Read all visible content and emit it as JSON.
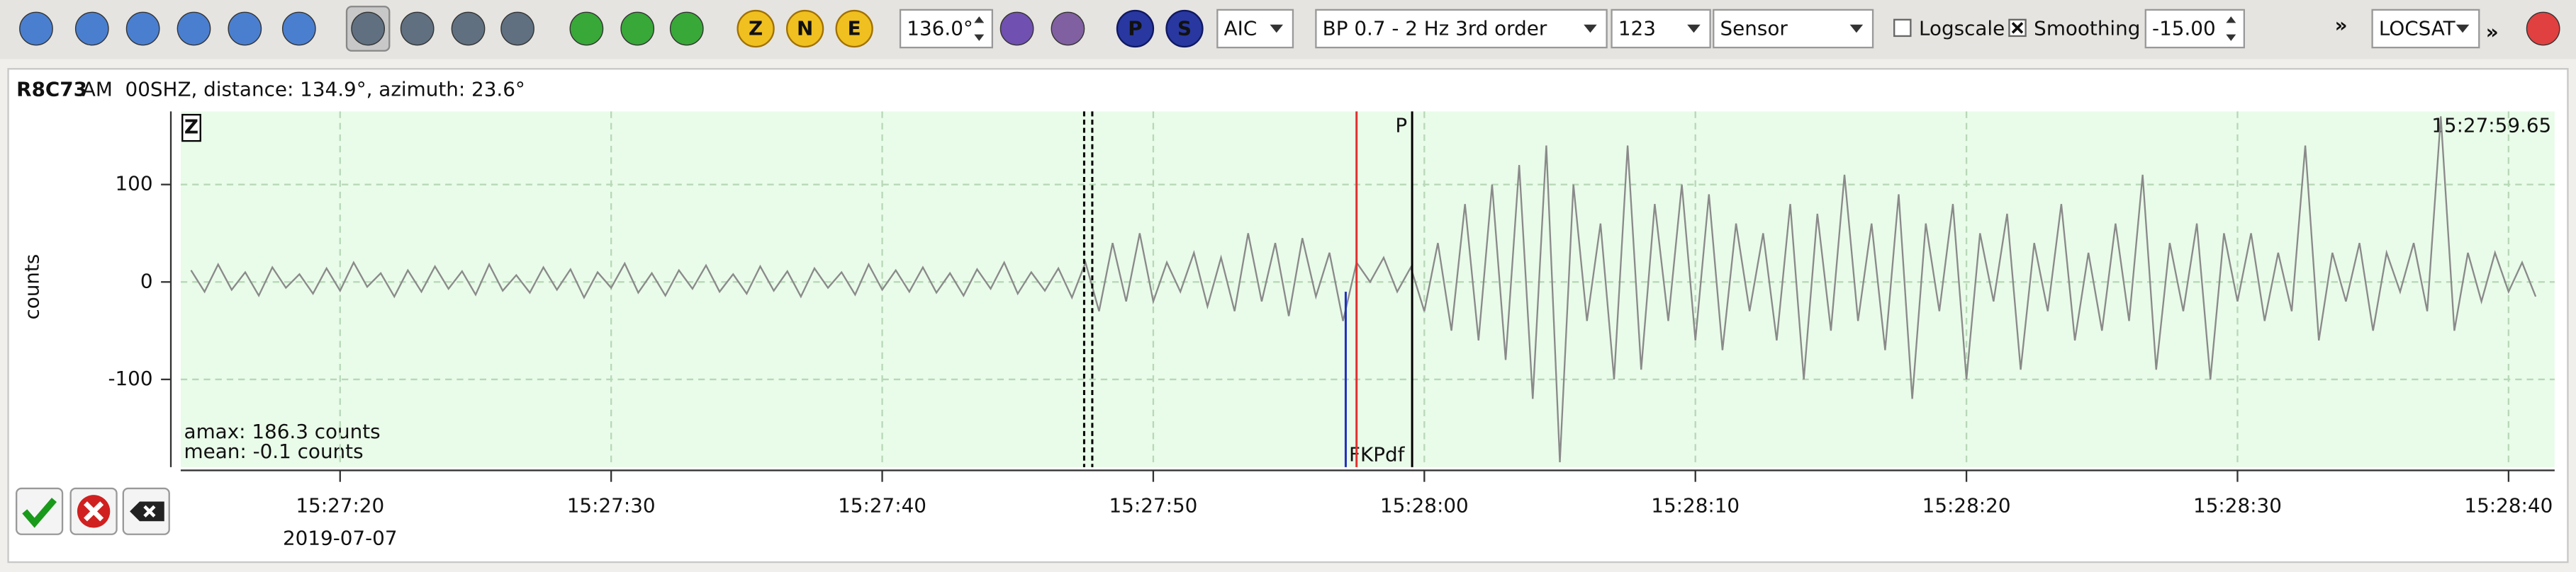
{
  "toolbar": {
    "component_buttons": [
      "Z",
      "N",
      "E"
    ],
    "phase_buttons": [
      "P",
      "S"
    ],
    "slowness": "136.0°",
    "picker": "AIC",
    "filter": "BP 0.7 - 2 Hz  3rd order",
    "channel": "123",
    "unit": "Sensor",
    "logscale": "Logscale",
    "smoothing": "Smoothing",
    "offset": "-15.00",
    "overflow": [
      "»",
      "»"
    ],
    "locator": "LOCSAT"
  },
  "trace": {
    "station": "R8C73",
    "info": "AM  00SHZ, distance: 134.9°, azimuth: 23.6°",
    "component": "Z",
    "time": "15:27:59.65",
    "amax": "amax: 186.3 counts",
    "mean": "mean: -0.1 counts",
    "date": "2019-07-07"
  },
  "chart_data": {
    "type": "line",
    "ylabel": "counts",
    "color": "#8a8a8a",
    "grid": true,
    "xlim": [
      14.12,
      101.7
    ],
    "ylim": [
      -190,
      175
    ],
    "xticks": [
      {
        "value": 20,
        "label": "15:27:20"
      },
      {
        "value": 30,
        "label": "15:27:30"
      },
      {
        "value": 40,
        "label": "15:27:40"
      },
      {
        "value": 50,
        "label": "15:27:50"
      },
      {
        "value": 60,
        "label": "15:28:00"
      },
      {
        "value": 70,
        "label": "15:28:10"
      },
      {
        "value": 80,
        "label": "15:28:20"
      },
      {
        "value": 90,
        "label": "15:28:30"
      },
      {
        "value": 100,
        "label": "15:28:40"
      }
    ],
    "yticks": [
      -100,
      0,
      100
    ],
    "picks": [
      {
        "x": 47.45,
        "color": "#000000"
      },
      {
        "x": 47.75,
        "color": "#000000"
      },
      {
        "x": 57.1,
        "color": "#2030c0",
        "label": "FKPdf"
      },
      {
        "x": 57.5,
        "color": "#e03030"
      },
      {
        "x": 59.55,
        "color": "#000000",
        "label": "P"
      }
    ],
    "x": [
      14.5,
      15,
      15.5,
      16,
      16.5,
      17,
      17.5,
      18,
      18.5,
      19,
      19.5,
      20,
      20.5,
      21,
      21.5,
      22,
      22.5,
      23,
      23.5,
      24,
      24.5,
      25,
      25.5,
      26,
      26.5,
      27,
      27.5,
      28,
      28.5,
      29,
      29.5,
      30,
      30.5,
      31,
      31.5,
      32,
      32.5,
      33,
      33.5,
      34,
      34.5,
      35,
      35.5,
      36,
      36.5,
      37,
      37.5,
      38,
      38.5,
      39,
      39.5,
      40,
      40.5,
      41,
      41.5,
      42,
      42.5,
      43,
      43.5,
      44,
      44.5,
      45,
      45.5,
      46,
      46.5,
      47,
      47.5,
      48,
      48.5,
      49,
      49.5,
      50,
      50.5,
      51,
      51.5,
      52,
      52.5,
      53,
      53.5,
      54,
      54.5,
      55,
      55.5,
      56,
      56.5,
      57,
      57.5,
      58,
      58.5,
      59,
      59.5,
      60,
      60.5,
      61,
      61.5,
      62,
      62.5,
      63,
      63.5,
      64,
      64.5,
      65,
      65.5,
      66,
      66.5,
      67,
      67.5,
      68,
      68.5,
      69,
      69.5,
      70,
      70.5,
      71,
      71.5,
      72,
      72.5,
      73,
      73.5,
      74,
      74.5,
      75,
      75.5,
      76,
      76.5,
      77,
      77.5,
      78,
      78.5,
      79,
      79.5,
      80,
      80.5,
      81,
      81.5,
      82,
      82.5,
      83,
      83.5,
      84,
      84.5,
      85,
      85.5,
      86,
      86.5,
      87,
      87.5,
      88,
      88.5,
      89,
      89.5,
      90,
      90.5,
      91,
      91.5,
      92,
      92.5,
      93,
      93.5,
      94,
      94.5,
      95,
      95.5,
      96,
      96.5,
      97,
      97.5,
      98,
      98.5,
      99,
      99.5,
      100,
      100.5,
      101
    ],
    "values": [
      12,
      -10,
      18,
      -8,
      10,
      -14,
      15,
      -6,
      8,
      -12,
      14,
      -9,
      20,
      -5,
      9,
      -15,
      12,
      -10,
      16,
      -7,
      11,
      -13,
      18,
      -9,
      7,
      -11,
      15,
      -8,
      13,
      -16,
      10,
      -6,
      19,
      -11,
      9,
      -14,
      12,
      -7,
      17,
      -10,
      8,
      -12,
      16,
      -9,
      11,
      -15,
      14,
      -6,
      10,
      -13,
      18,
      -8,
      12,
      -10,
      15,
      -11,
      9,
      -14,
      13,
      -7,
      20,
      -12,
      10,
      -9,
      14,
      -16,
      20,
      -30,
      40,
      -20,
      50,
      -20,
      20,
      -10,
      30,
      -25,
      25,
      -30,
      50,
      -20,
      40,
      -35,
      45,
      -15,
      30,
      -40,
      20,
      0,
      25,
      -10,
      15,
      -30,
      40,
      -50,
      80,
      -60,
      100,
      -80,
      120,
      -120,
      140,
      -185,
      100,
      -40,
      60,
      -100,
      140,
      -90,
      80,
      -40,
      100,
      -60,
      90,
      -70,
      60,
      -30,
      50,
      -60,
      80,
      -100,
      70,
      -50,
      110,
      -40,
      60,
      -70,
      90,
      -120,
      60,
      -30,
      80,
      -100,
      50,
      -20,
      70,
      -90,
      40,
      -30,
      80,
      -60,
      30,
      -50,
      60,
      -40,
      110,
      -90,
      40,
      -30,
      60,
      -100,
      50,
      -20,
      50,
      -40,
      30,
      -30,
      140,
      -60,
      30,
      -20,
      40,
      -50,
      30,
      -10,
      40,
      -30,
      170,
      -50,
      30,
      -20,
      30,
      -10,
      20,
      -15
    ]
  }
}
